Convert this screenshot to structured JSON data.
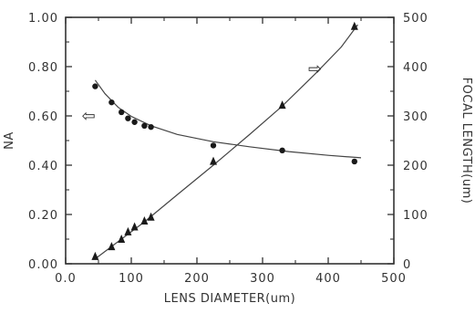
{
  "chart_data": {
    "type": "scatter",
    "title": "",
    "xlabel": "LENS DIAMETER(um)",
    "ylabel_left": "NA",
    "ylabel_right": "FOCAL LENGTH(um)",
    "xlim": [
      0,
      500
    ],
    "ylim_left": [
      0,
      1.0
    ],
    "ylim_right": [
      0,
      500
    ],
    "x_ticks": [
      "0.0",
      "100",
      "200",
      "300",
      "400",
      "500"
    ],
    "y_left_ticks": [
      "0.00",
      "0.20",
      "0.40",
      "0.60",
      "0.80",
      "1.00"
    ],
    "y_right_ticks": [
      "0",
      "100",
      "200",
      "300",
      "400",
      "500"
    ],
    "grid": false,
    "series": [
      {
        "axis": "left",
        "marker": "circle",
        "points": [
          {
            "x": 45,
            "y": 0.72
          },
          {
            "x": 70,
            "y": 0.655
          },
          {
            "x": 85,
            "y": 0.615
          },
          {
            "x": 95,
            "y": 0.59
          },
          {
            "x": 105,
            "y": 0.575
          },
          {
            "x": 120,
            "y": 0.56
          },
          {
            "x": 130,
            "y": 0.555
          },
          {
            "x": 225,
            "y": 0.48
          },
          {
            "x": 330,
            "y": 0.46
          },
          {
            "x": 440,
            "y": 0.415
          }
        ],
        "fit": [
          [
            45,
            0.745
          ],
          [
            60,
            0.69
          ],
          [
            80,
            0.635
          ],
          [
            100,
            0.598
          ],
          [
            130,
            0.56
          ],
          [
            170,
            0.525
          ],
          [
            225,
            0.495
          ],
          [
            280,
            0.475
          ],
          [
            340,
            0.455
          ],
          [
            400,
            0.44
          ],
          [
            450,
            0.43
          ]
        ]
      },
      {
        "axis": "right",
        "marker": "triangle",
        "points": [
          {
            "x": 45,
            "y": 15
          },
          {
            "x": 70,
            "y": 35
          },
          {
            "x": 85,
            "y": 50
          },
          {
            "x": 95,
            "y": 65
          },
          {
            "x": 105,
            "y": 75
          },
          {
            "x": 120,
            "y": 87
          },
          {
            "x": 130,
            "y": 95
          },
          {
            "x": 225,
            "y": 208
          },
          {
            "x": 330,
            "y": 322
          },
          {
            "x": 440,
            "y": 482
          }
        ],
        "fit": [
          [
            45,
            10
          ],
          [
            80,
            45
          ],
          [
            120,
            85
          ],
          [
            170,
            140
          ],
          [
            225,
            200
          ],
          [
            280,
            262
          ],
          [
            330,
            320
          ],
          [
            380,
            385
          ],
          [
            420,
            440
          ],
          [
            445,
            485
          ]
        ]
      }
    ],
    "annotations": [
      {
        "text": "⇦",
        "x": 35,
        "y": 0.6,
        "axis": "left"
      },
      {
        "text": "⇨",
        "x": 380,
        "y": 0.79,
        "axis": "left"
      }
    ]
  }
}
